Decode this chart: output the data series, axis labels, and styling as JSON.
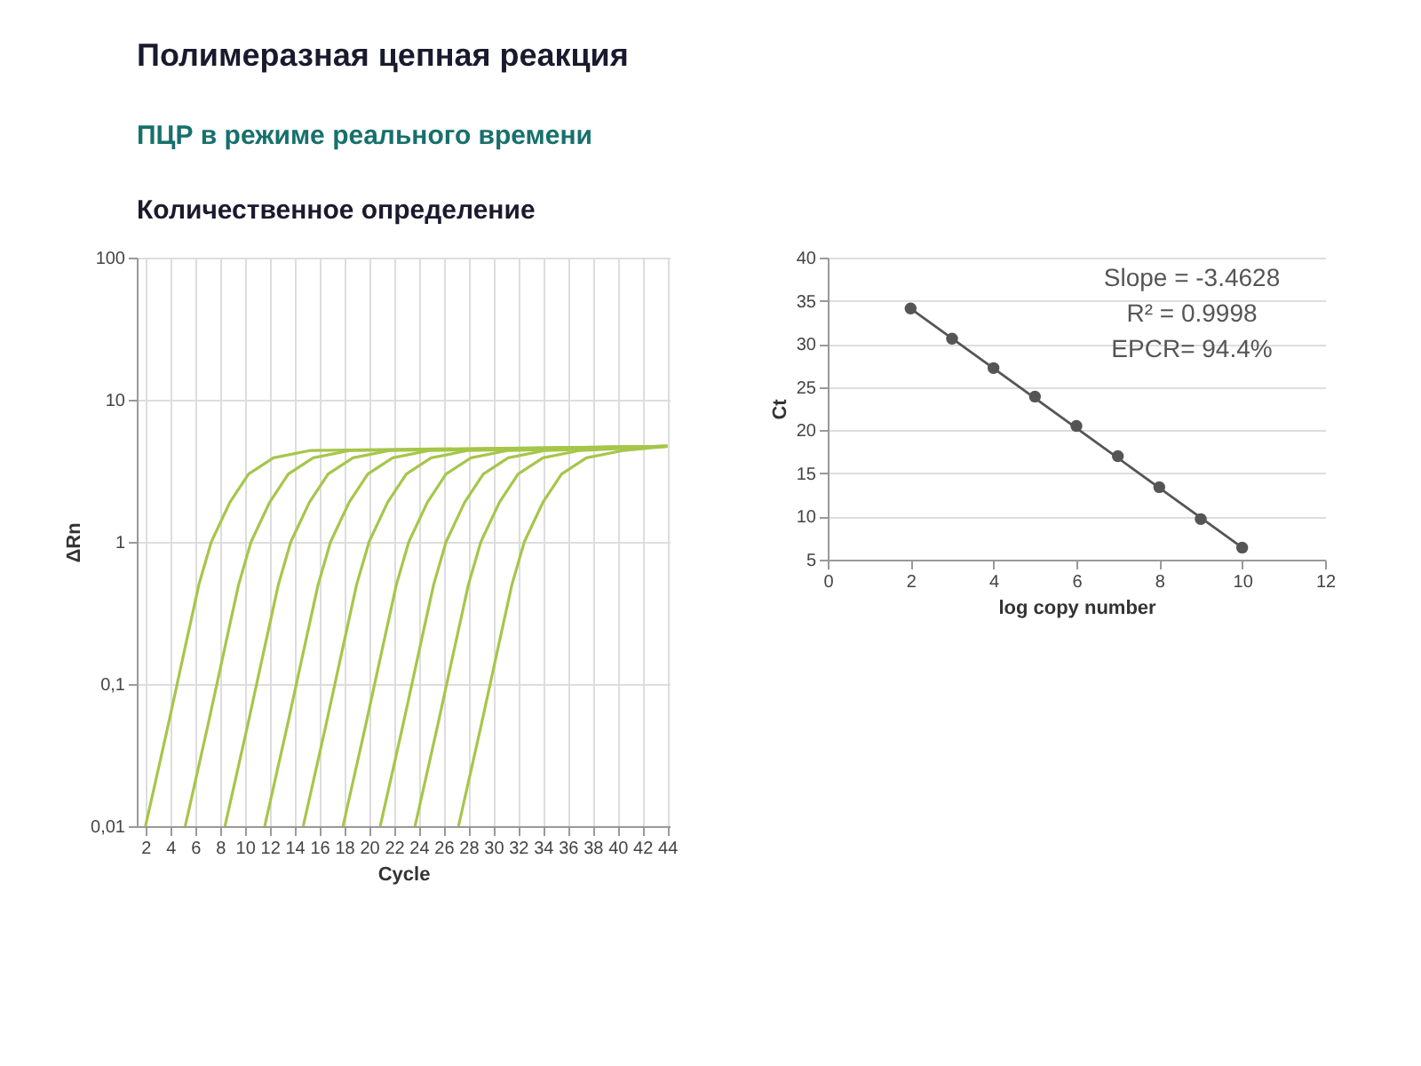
{
  "chart_data": [
    {
      "type": "line",
      "title": "Полимеразная цепная реакция",
      "subtitle": "ПЦР в режиме реального времени",
      "annotations": [
        "Количественное определение"
      ],
      "xlabel": "Cycle",
      "ylabel": "ΔRn",
      "log": "y",
      "grid": true,
      "marker": "none",
      "xlim": [
        1.3,
        44.2
      ],
      "xticks": [
        2,
        4,
        6,
        8,
        10,
        12,
        14,
        16,
        18,
        20,
        22,
        24,
        26,
        28,
        30,
        32,
        34,
        36,
        38,
        40,
        42,
        44
      ],
      "ylim": [
        0.01,
        100
      ],
      "yticks": [
        {
          "value": 0.01,
          "label": "0,01"
        },
        {
          "value": 0.1,
          "label": "0,1"
        },
        1,
        10,
        100
      ],
      "series": [
        {
          "color": "#a6c64a",
          "x": [
            2.0,
            3.8,
            5.3,
            6.3,
            7.3,
            8.8,
            10.3,
            12.3,
            15.3,
            44
          ],
          "values": [
            0.01,
            0.05,
            0.2,
            0.5,
            1,
            1.9,
            3,
            3.9,
            4.4,
            4.7
          ]
        },
        {
          "color": "#a6c64a",
          "x": [
            5.2,
            7.0,
            8.5,
            9.5,
            10.5,
            12.0,
            13.5,
            15.5,
            18.5,
            44
          ],
          "values": [
            0.01,
            0.05,
            0.2,
            0.5,
            1,
            1.9,
            3,
            3.9,
            4.4,
            4.7
          ]
        },
        {
          "color": "#a6c64a",
          "x": [
            8.4,
            10.2,
            11.7,
            12.7,
            13.7,
            15.2,
            16.7,
            18.7,
            21.7,
            44
          ],
          "values": [
            0.01,
            0.05,
            0.2,
            0.5,
            1,
            1.9,
            3,
            3.9,
            4.4,
            4.7
          ]
        },
        {
          "color": "#a6c64a",
          "x": [
            11.6,
            13.4,
            14.9,
            15.9,
            16.9,
            18.4,
            19.9,
            21.9,
            24.9,
            44
          ],
          "values": [
            0.01,
            0.05,
            0.2,
            0.5,
            1,
            1.9,
            3,
            3.9,
            4.4,
            4.7
          ]
        },
        {
          "color": "#a6c64a",
          "x": [
            14.7,
            16.5,
            18.0,
            19.0,
            20.0,
            21.5,
            23.0,
            25.0,
            28.0,
            44
          ],
          "values": [
            0.01,
            0.05,
            0.2,
            0.5,
            1,
            1.9,
            3,
            3.9,
            4.4,
            4.7
          ]
        },
        {
          "color": "#a6c64a",
          "x": [
            17.9,
            19.7,
            21.2,
            22.2,
            23.2,
            24.7,
            26.2,
            28.2,
            31.2,
            44
          ],
          "values": [
            0.01,
            0.05,
            0.2,
            0.5,
            1,
            1.9,
            3,
            3.9,
            4.4,
            4.7
          ]
        },
        {
          "color": "#a6c64a",
          "x": [
            20.9,
            22.7,
            24.2,
            25.2,
            26.2,
            27.7,
            29.2,
            31.2,
            34.2,
            44
          ],
          "values": [
            0.01,
            0.05,
            0.2,
            0.5,
            1,
            1.9,
            3,
            3.9,
            4.4,
            4.7
          ]
        },
        {
          "color": "#a6c64a",
          "x": [
            23.7,
            25.5,
            27.0,
            28.0,
            29.0,
            30.5,
            32.0,
            34.0,
            37.0,
            44
          ],
          "values": [
            0.01,
            0.05,
            0.2,
            0.5,
            1,
            1.9,
            3,
            3.9,
            4.4,
            4.7
          ]
        },
        {
          "color": "#a6c64a",
          "x": [
            27.2,
            29.0,
            30.5,
            31.5,
            32.5,
            34.0,
            35.5,
            37.5,
            40.5,
            44
          ],
          "values": [
            0.01,
            0.05,
            0.2,
            0.5,
            1,
            1.9,
            3,
            3.9,
            4.4,
            4.7
          ]
        }
      ]
    },
    {
      "type": "scatter",
      "xlabel": "log copy number",
      "ylabel": "Ct",
      "grid": "y",
      "marker": "circle",
      "annotations": [
        "Slope = -3.4628",
        "R² = 0.9998",
        "EPCR= 94.4%"
      ],
      "xlim": [
        0,
        12
      ],
      "xticks": [
        0,
        2,
        4,
        6,
        8,
        10,
        12
      ],
      "ylim": [
        5,
        40
      ],
      "yticks": [
        5,
        10,
        15,
        20,
        25,
        30,
        35,
        40
      ],
      "series": [
        {
          "color": "#555555",
          "x": [
            2,
            3,
            4,
            5,
            6,
            7,
            8,
            9,
            10
          ],
          "values": [
            34.1,
            30.6,
            27.2,
            23.9,
            20.5,
            17.0,
            13.4,
            9.7,
            6.4
          ]
        },
        {
          "type": "line",
          "marker": "none",
          "color": "#555555",
          "x": [
            2,
            10
          ],
          "values": [
            34.1,
            6.4
          ]
        }
      ]
    }
  ]
}
